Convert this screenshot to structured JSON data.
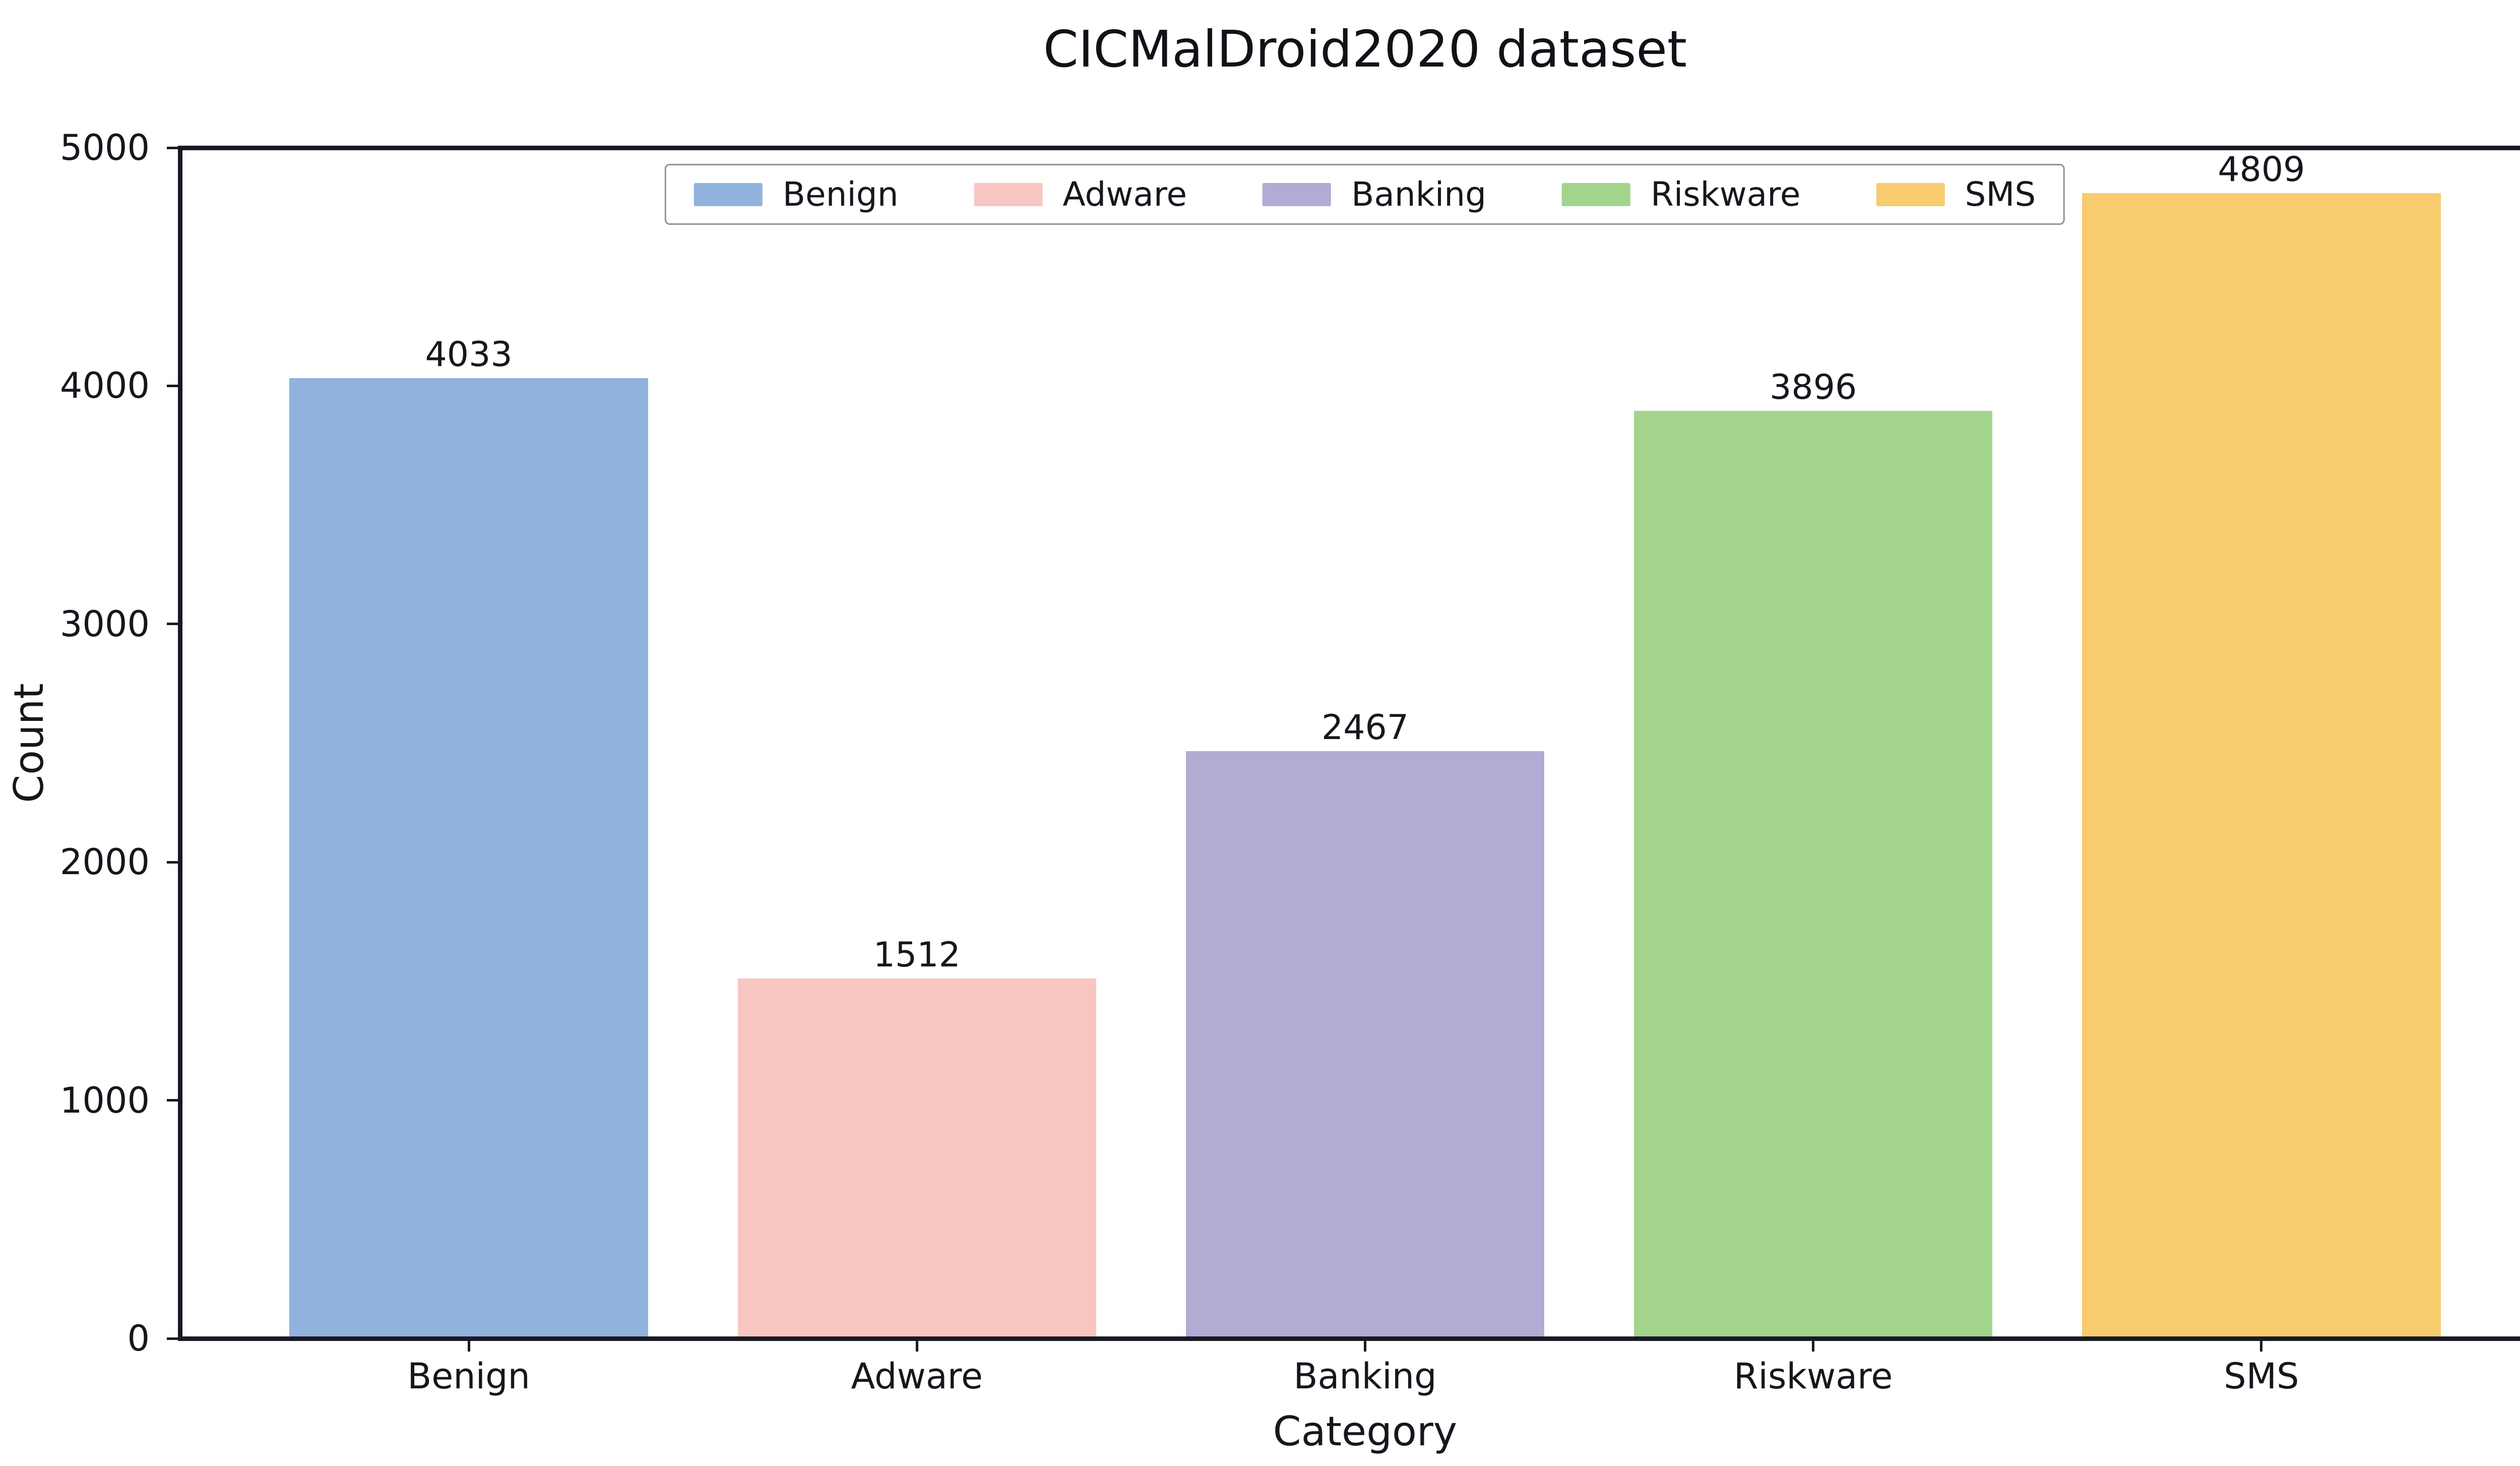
{
  "figure": {
    "title": "CICMalDroid2020 dataset",
    "xlabel": "Category",
    "ylabel": "Count"
  },
  "chart_data": {
    "type": "bar",
    "title": "CICMalDroid2020 dataset",
    "xlabel": "Category",
    "ylabel": "Count",
    "categories": [
      "Benign",
      "Adware",
      "Banking",
      "Riskware",
      "SMS"
    ],
    "values": [
      4033,
      1512,
      2467,
      3896,
      4809
    ],
    "bar_value_labels": [
      "4033",
      "1512",
      "2467",
      "3896",
      "4809"
    ],
    "bar_colors": [
      "#92b2de",
      "#f8c6c1",
      "#b3abd3",
      "#a3d48b",
      "#f7cb6e"
    ],
    "ylim": [
      0,
      5000
    ],
    "yticks": [
      0,
      1000,
      2000,
      3000,
      4000,
      5000
    ],
    "ytick_labels": [
      "0",
      "1000",
      "2000",
      "3000",
      "4000",
      "5000"
    ],
    "grid": false,
    "legend": {
      "position": "top-center",
      "entries": [
        {
          "label": "Benign",
          "color": "#92b2de"
        },
        {
          "label": "Adware",
          "color": "#f8c6c1"
        },
        {
          "label": "Banking",
          "color": "#b3abd3"
        },
        {
          "label": "Riskware",
          "color": "#a3d48b"
        },
        {
          "label": "SMS",
          "color": "#f7cb6e"
        }
      ]
    },
    "axis_color": "#191924",
    "text_color": "#16161d"
  }
}
